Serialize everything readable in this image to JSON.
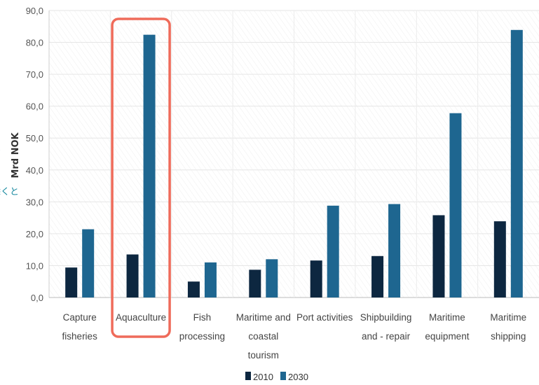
{
  "chart_data": {
    "type": "bar",
    "title": "",
    "xlabel": "",
    "ylabel": "Mrd NOK",
    "ylim": [
      0,
      90
    ],
    "yticks": [
      "0,0",
      "10,0",
      "20,0",
      "30,0",
      "40,0",
      "50,0",
      "60,0",
      "70,0",
      "80,0",
      "90,0"
    ],
    "categories": [
      [
        "Capture",
        "fisheries"
      ],
      [
        "Aquaculture"
      ],
      [
        "Fish",
        "processing"
      ],
      [
        "Maritime and",
        "coastal",
        "tourism"
      ],
      [
        "Port activities"
      ],
      [
        "Shipbuilding",
        "and - repair"
      ],
      [
        "Maritime",
        "equipment"
      ],
      [
        "Maritime",
        "shipping"
      ]
    ],
    "series": [
      {
        "name": "2010",
        "values": [
          9.4,
          13.5,
          5.0,
          8.7,
          11.6,
          13.0,
          25.8,
          23.9
        ]
      },
      {
        "name": "2030",
        "values": [
          21.4,
          82.4,
          11.0,
          12.0,
          28.8,
          29.3,
          57.8,
          83.9
        ]
      }
    ],
    "legend": "bottom",
    "grid": true,
    "highlight": {
      "category_index": 1,
      "color": "#ef6b5a"
    }
  },
  "colors": {
    "series_2010": "#0d2740",
    "series_2030": "#1e6690",
    "grid": "#e6e6e6",
    "highlight": "#ef6b5a"
  },
  "cropped_text": {
    "left_edge_glyphs": [
      "⧽",
      "除くと"
    ]
  }
}
